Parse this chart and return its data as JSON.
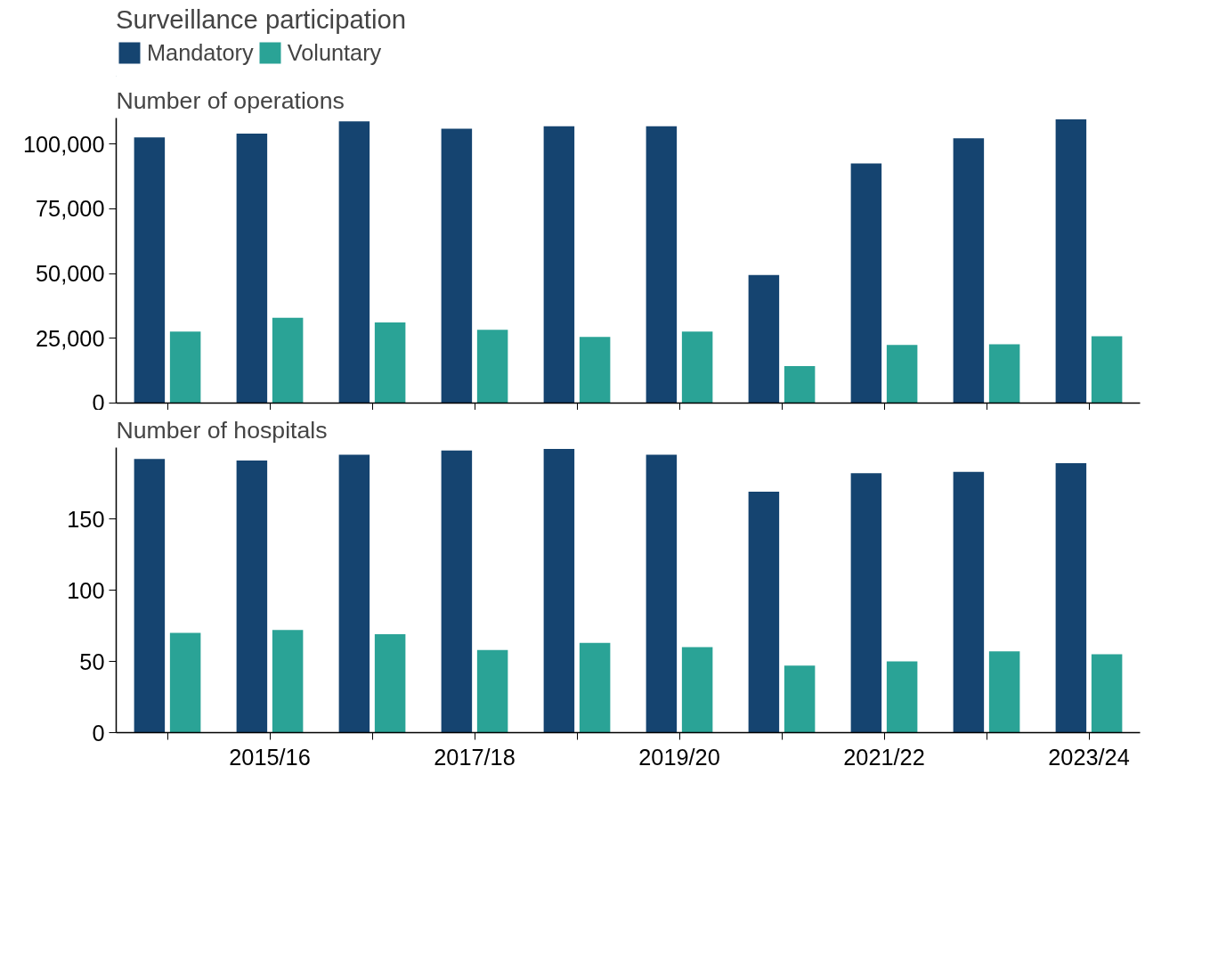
{
  "chart_data": [
    {
      "type": "bar",
      "title": "Number of operations",
      "legend_title": "Surveillance participation",
      "legend": "top",
      "grid": false,
      "tick_labels": "y",
      "categories": [
        null,
        "2015/16",
        null,
        "2017/18",
        null,
        "2019/20",
        null,
        "2021/22",
        null,
        "2023/24"
      ],
      "ylim": [
        0,
        110000
      ],
      "yticks": [
        {
          "value": 0,
          "label": "0"
        },
        {
          "value": 25000,
          "label": "25,000"
        },
        {
          "value": 50000,
          "label": "50,000"
        },
        {
          "value": 75000,
          "label": "75,000"
        },
        {
          "value": 100000,
          "label": "100,000"
        }
      ],
      "series": [
        {
          "name": "Mandatory",
          "color": "#154470",
          "values": [
            102500,
            104000,
            108700,
            105900,
            106800,
            106800,
            49400,
            92500,
            102200,
            109500
          ]
        },
        {
          "name": "Voluntary",
          "color": "#2aa396",
          "values": [
            27600,
            32900,
            31100,
            28300,
            25500,
            27600,
            14300,
            22400,
            22700,
            25800
          ]
        }
      ]
    },
    {
      "type": "bar",
      "title": "Number of hospitals",
      "legend": false,
      "grid": false,
      "categories": [
        null,
        "2015/16",
        null,
        "2017/18",
        null,
        "2019/20",
        null,
        "2021/22",
        null,
        "2023/24"
      ],
      "ylim": [
        0,
        200
      ],
      "yticks": [
        0,
        50,
        100,
        150
      ],
      "series": [
        {
          "color": "#154470",
          "values": [
            192,
            191,
            195,
            198,
            199,
            195,
            169,
            182,
            183,
            189
          ]
        },
        {
          "color": "#2aa396",
          "values": [
            70,
            72,
            69,
            58,
            63,
            60,
            47,
            50,
            57,
            55
          ]
        }
      ]
    }
  ]
}
